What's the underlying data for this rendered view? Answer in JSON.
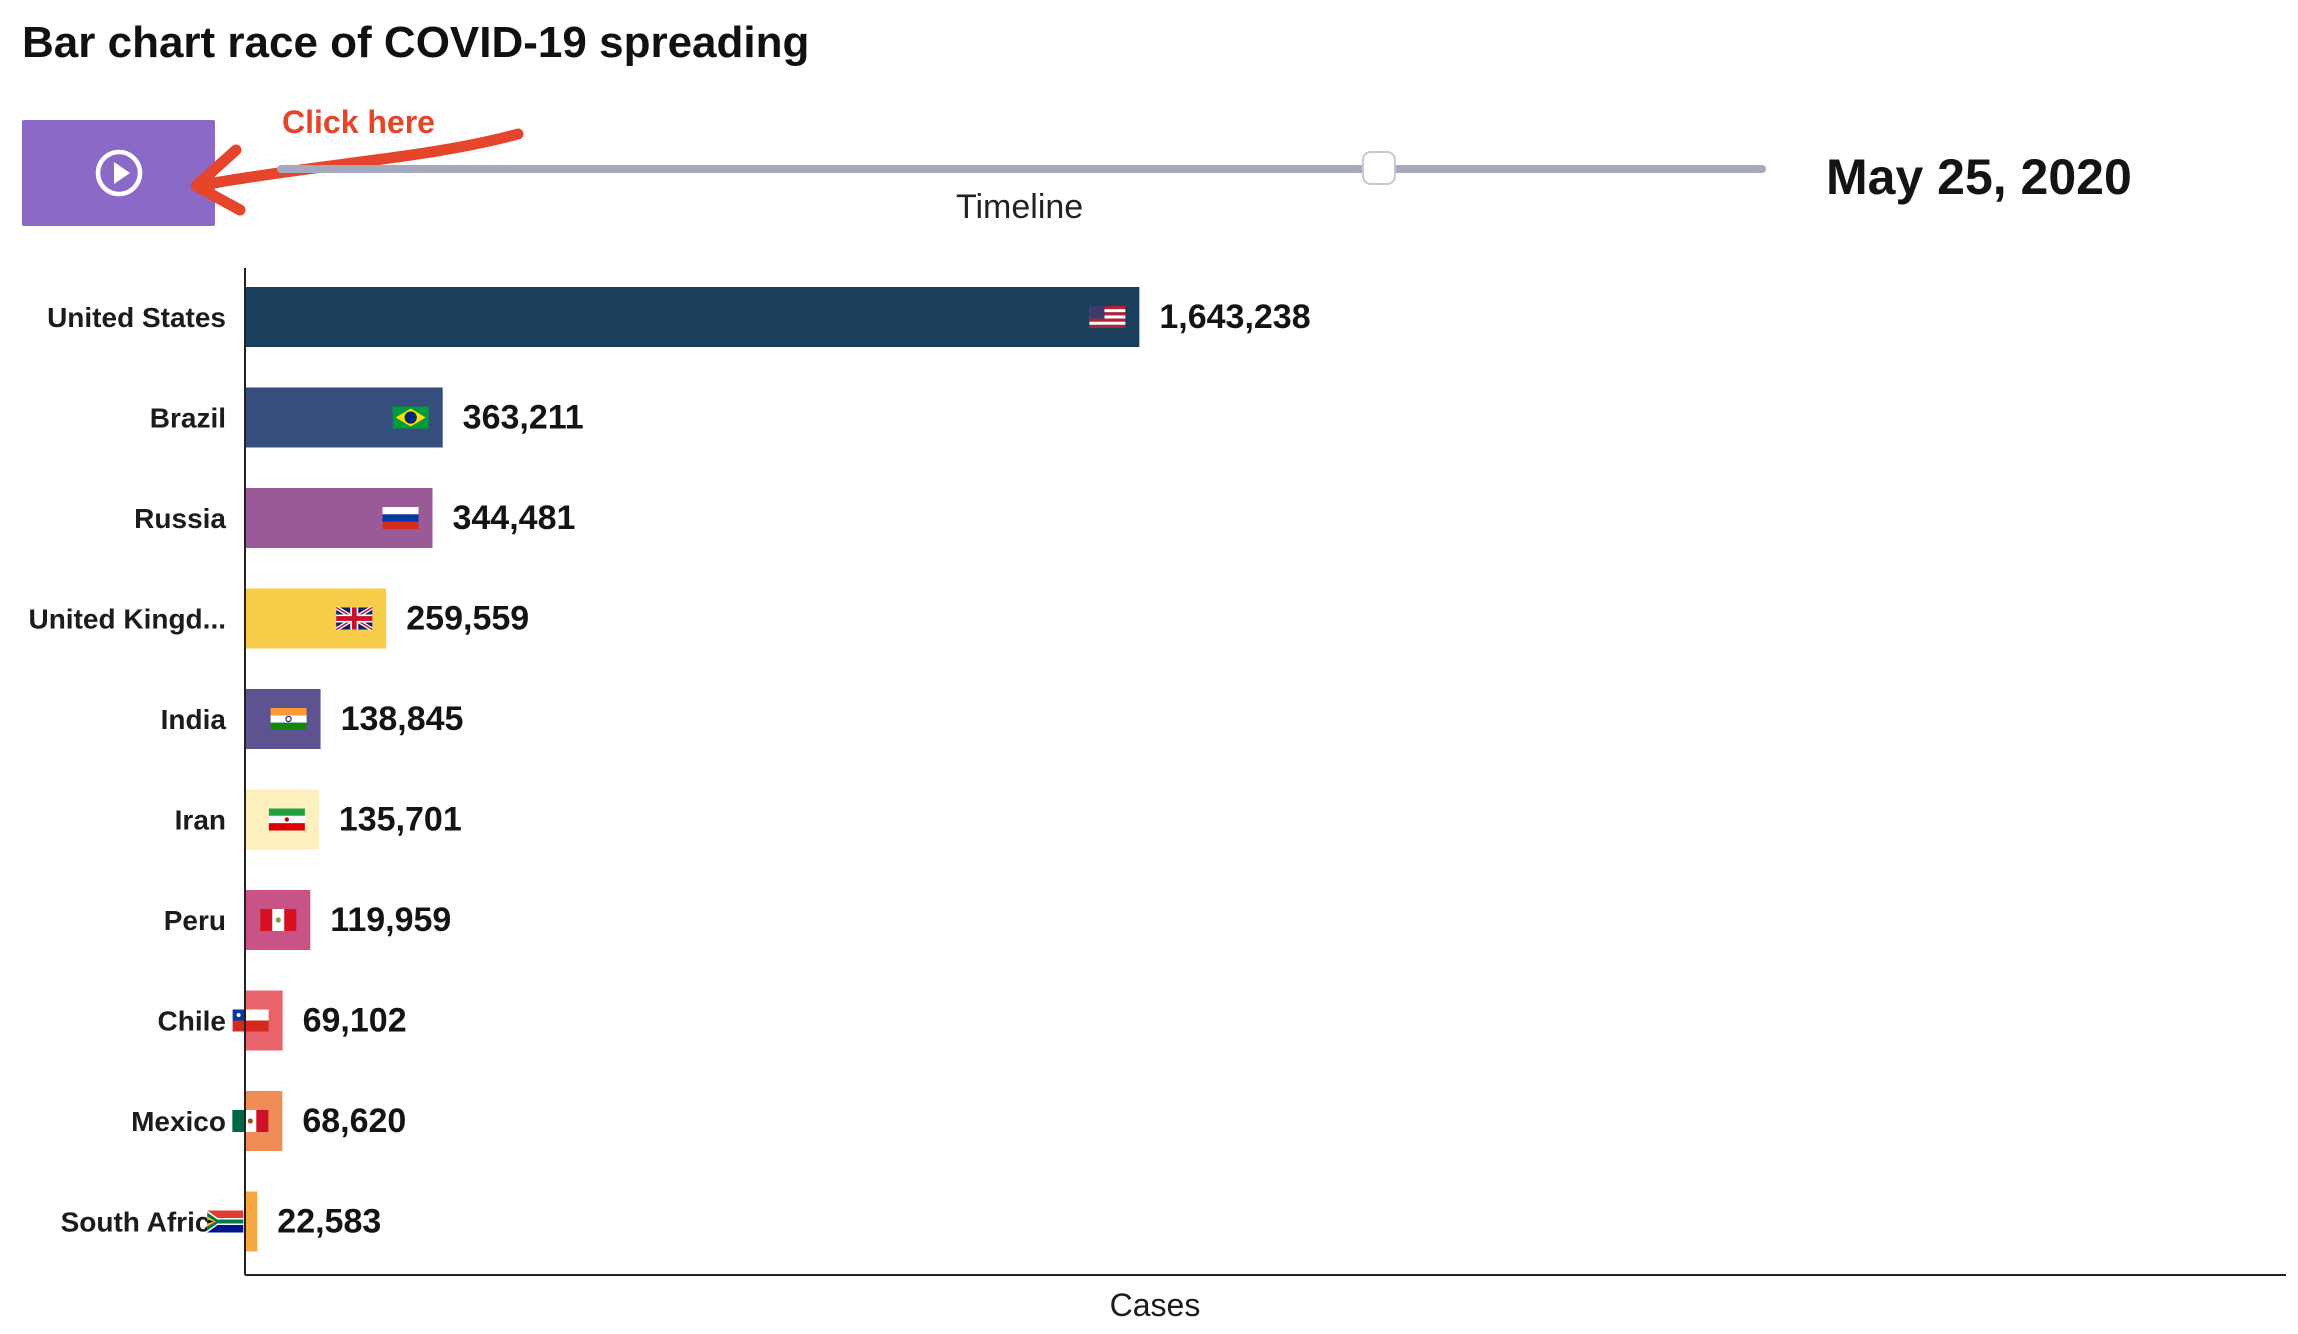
{
  "title": "Bar chart race of COVID-19 spreading",
  "controls": {
    "play_icon": "play-circle-icon",
    "annotation": "Click here",
    "timeline_label": "Timeline",
    "timeline_position": 0.74,
    "date": "May 25, 2020"
  },
  "colors": {
    "play_button": "#8a6ac6",
    "annotation": "#e5452a",
    "track": "#a4a9be"
  },
  "chart_data": {
    "type": "bar",
    "orientation": "horizontal",
    "categories": [
      "United States",
      "Brazil",
      "Russia",
      "United Kingd...",
      "India",
      "Iran",
      "Peru",
      "Chile",
      "Mexico",
      "South Africa"
    ],
    "values": [
      1643238,
      363211,
      344481,
      259559,
      138845,
      135701,
      119959,
      69102,
      68620,
      22583
    ],
    "value_labels": [
      "1,643,238",
      "363,211",
      "344,481",
      "259,559",
      "138,845",
      "135,701",
      "119,959",
      "69,102",
      "68,620",
      "22,583"
    ],
    "colors": [
      "#1a3f5c",
      "#354e7d",
      "#9a5a98",
      "#f6cd48",
      "#5f5290",
      "#fdefbe",
      "#c85387",
      "#e8636c",
      "#f08c55",
      "#f5a843"
    ],
    "flags": [
      "us",
      "br",
      "ru",
      "gb",
      "in",
      "ir",
      "pe",
      "cl",
      "mx",
      "za"
    ],
    "xlabel": "Cases",
    "xlim": [
      0,
      3750000
    ]
  }
}
